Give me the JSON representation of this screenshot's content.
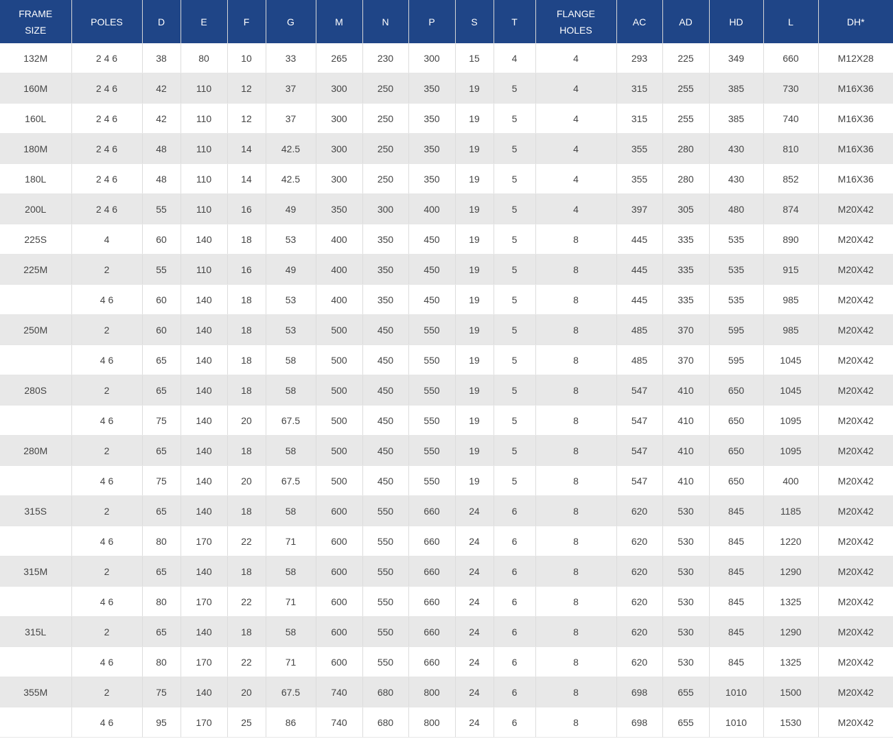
{
  "table": {
    "header": [
      "FRAME SIZE",
      "POLES",
      "D",
      "E",
      "F",
      "G",
      "M",
      "N",
      "P",
      "S",
      "T",
      "FLANGE HOLES",
      "AC",
      "AD",
      "HD",
      "L",
      "DH*"
    ],
    "rows": [
      [
        "132M",
        "2 4 6",
        38,
        80,
        10,
        33,
        265,
        230,
        300,
        15,
        4,
        4,
        293,
        225,
        349,
        660,
        "M12X28"
      ],
      [
        "160M",
        "2 4 6",
        42,
        110,
        12,
        37,
        300,
        250,
        350,
        19,
        5,
        4,
        315,
        255,
        385,
        730,
        "M16X36"
      ],
      [
        "160L",
        "2 4 6",
        42,
        110,
        12,
        37,
        300,
        250,
        350,
        19,
        5,
        4,
        315,
        255,
        385,
        740,
        "M16X36"
      ],
      [
        "180M",
        "2 4 6",
        48,
        110,
        14,
        42.5,
        300,
        250,
        350,
        19,
        5,
        4,
        355,
        280,
        430,
        810,
        "M16X36"
      ],
      [
        "180L",
        "2 4 6",
        48,
        110,
        14,
        42.5,
        300,
        250,
        350,
        19,
        5,
        4,
        355,
        280,
        430,
        852,
        "M16X36"
      ],
      [
        "200L",
        "2 4 6",
        55,
        110,
        16,
        49,
        350,
        300,
        400,
        19,
        5,
        4,
        397,
        305,
        480,
        874,
        "M20X42"
      ],
      [
        "225S",
        "4",
        60,
        140,
        18,
        53,
        400,
        350,
        450,
        19,
        5,
        8,
        445,
        335,
        535,
        890,
        "M20X42"
      ],
      [
        "225M",
        "2",
        55,
        110,
        16,
        49,
        400,
        350,
        450,
        19,
        5,
        8,
        445,
        335,
        535,
        915,
        "M20X42"
      ],
      [
        null,
        "4 6",
        60,
        140,
        18,
        53,
        400,
        350,
        450,
        19,
        5,
        8,
        445,
        335,
        535,
        985,
        "M20X42"
      ],
      [
        "250M",
        "2",
        60,
        140,
        18,
        53,
        500,
        450,
        550,
        19,
        5,
        8,
        485,
        370,
        595,
        985,
        "M20X42"
      ],
      [
        null,
        "4 6",
        65,
        140,
        18,
        58,
        500,
        450,
        550,
        19,
        5,
        8,
        485,
        370,
        595,
        1045,
        "M20X42"
      ],
      [
        "280S",
        "2",
        65,
        140,
        18,
        58,
        500,
        450,
        550,
        19,
        5,
        8,
        547,
        410,
        650,
        1045,
        "M20X42"
      ],
      [
        null,
        "4 6",
        75,
        140,
        20,
        67.5,
        500,
        450,
        550,
        19,
        5,
        8,
        547,
        410,
        650,
        1095,
        "M20X42"
      ],
      [
        "280M",
        "2",
        65,
        140,
        18,
        58,
        500,
        450,
        550,
        19,
        5,
        8,
        547,
        410,
        650,
        1095,
        "M20X42"
      ],
      [
        null,
        "4 6",
        75,
        140,
        20,
        67.5,
        500,
        450,
        550,
        19,
        5,
        8,
        547,
        410,
        650,
        400,
        "M20X42"
      ],
      [
        "315S",
        "2",
        65,
        140,
        18,
        58,
        600,
        550,
        660,
        24,
        6,
        8,
        620,
        530,
        845,
        1185,
        "M20X42"
      ],
      [
        null,
        "4 6",
        80,
        170,
        22,
        71,
        600,
        550,
        660,
        24,
        6,
        8,
        620,
        530,
        845,
        1220,
        "M20X42"
      ],
      [
        "315M",
        "2",
        65,
        140,
        18,
        58,
        600,
        550,
        660,
        24,
        6,
        8,
        620,
        530,
        845,
        1290,
        "M20X42"
      ],
      [
        null,
        "4 6",
        80,
        170,
        22,
        71,
        600,
        550,
        660,
        24,
        6,
        8,
        620,
        530,
        845,
        1325,
        "M20X42"
      ],
      [
        "315L",
        "2",
        65,
        140,
        18,
        58,
        600,
        550,
        660,
        24,
        6,
        8,
        620,
        530,
        845,
        1290,
        "M20X42"
      ],
      [
        null,
        "4 6",
        80,
        170,
        22,
        71,
        600,
        550,
        660,
        24,
        6,
        8,
        620,
        530,
        845,
        1325,
        "M20X42"
      ],
      [
        "355M",
        "2",
        75,
        140,
        20,
        67.5,
        740,
        680,
        800,
        24,
        6,
        8,
        698,
        655,
        1010,
        1500,
        "M20X42"
      ],
      [
        null,
        "4 6",
        95,
        170,
        25,
        86,
        740,
        680,
        800,
        24,
        6,
        8,
        698,
        655,
        1010,
        1530,
        "M20X42"
      ]
    ]
  }
}
